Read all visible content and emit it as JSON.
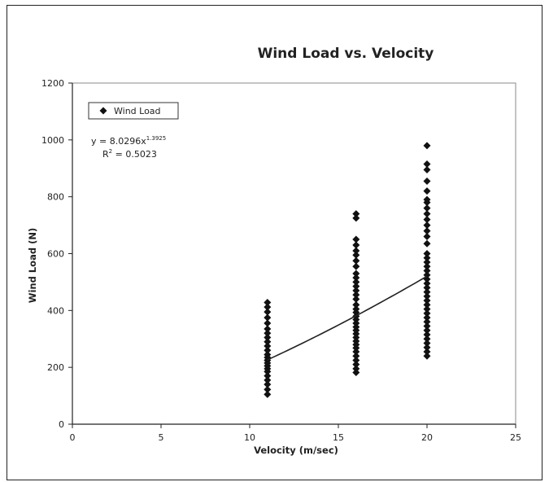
{
  "chart_data": {
    "type": "scatter",
    "title": "Wind Load vs. Velocity",
    "xlabel": "Velocity (m/sec)",
    "ylabel": "Wind Load (N)",
    "xlim": [
      0,
      25
    ],
    "ylim": [
      0,
      1200
    ],
    "xticks": [
      "0",
      "5",
      "10",
      "15",
      "20",
      "25"
    ],
    "yticks": [
      "0",
      "200",
      "400",
      "600",
      "800",
      "1000",
      "1200"
    ],
    "grid": false,
    "legend": {
      "position": "top-left",
      "entries": [
        "Wind Load"
      ]
    },
    "series": [
      {
        "name": "Wind Load",
        "marker": "diamond",
        "color": "#111111",
        "points": [
          [
            11,
            105
          ],
          [
            11,
            122
          ],
          [
            11,
            140
          ],
          [
            11,
            155
          ],
          [
            11,
            170
          ],
          [
            11,
            185
          ],
          [
            11,
            195
          ],
          [
            11,
            205
          ],
          [
            11,
            215
          ],
          [
            11,
            225
          ],
          [
            11,
            235
          ],
          [
            11,
            245
          ],
          [
            11,
            260
          ],
          [
            11,
            275
          ],
          [
            11,
            290
          ],
          [
            11,
            305
          ],
          [
            11,
            320
          ],
          [
            11,
            335
          ],
          [
            11,
            355
          ],
          [
            11,
            375
          ],
          [
            11,
            395
          ],
          [
            11,
            412
          ],
          [
            11,
            428
          ],
          [
            16,
            182
          ],
          [
            16,
            195
          ],
          [
            16,
            210
          ],
          [
            16,
            225
          ],
          [
            16,
            240
          ],
          [
            16,
            255
          ],
          [
            16,
            268
          ],
          [
            16,
            280
          ],
          [
            16,
            292
          ],
          [
            16,
            305
          ],
          [
            16,
            318
          ],
          [
            16,
            330
          ],
          [
            16,
            342
          ],
          [
            16,
            355
          ],
          [
            16,
            368
          ],
          [
            16,
            380
          ],
          [
            16,
            393
          ],
          [
            16,
            405
          ],
          [
            16,
            420
          ],
          [
            16,
            440
          ],
          [
            16,
            455
          ],
          [
            16,
            470
          ],
          [
            16,
            485
          ],
          [
            16,
            500
          ],
          [
            16,
            515
          ],
          [
            16,
            530
          ],
          [
            16,
            555
          ],
          [
            16,
            575
          ],
          [
            16,
            595
          ],
          [
            16,
            610
          ],
          [
            16,
            630
          ],
          [
            16,
            650
          ],
          [
            16,
            725
          ],
          [
            16,
            740
          ],
          [
            20,
            240
          ],
          [
            20,
            255
          ],
          [
            20,
            270
          ],
          [
            20,
            285
          ],
          [
            20,
            300
          ],
          [
            20,
            315
          ],
          [
            20,
            330
          ],
          [
            20,
            345
          ],
          [
            20,
            360
          ],
          [
            20,
            375
          ],
          [
            20,
            390
          ],
          [
            20,
            405
          ],
          [
            20,
            420
          ],
          [
            20,
            435
          ],
          [
            20,
            450
          ],
          [
            20,
            465
          ],
          [
            20,
            480
          ],
          [
            20,
            495
          ],
          [
            20,
            510
          ],
          [
            20,
            525
          ],
          [
            20,
            540
          ],
          [
            20,
            555
          ],
          [
            20,
            570
          ],
          [
            20,
            585
          ],
          [
            20,
            600
          ],
          [
            20,
            635
          ],
          [
            20,
            660
          ],
          [
            20,
            680
          ],
          [
            20,
            700
          ],
          [
            20,
            720
          ],
          [
            20,
            740
          ],
          [
            20,
            760
          ],
          [
            20,
            780
          ],
          [
            20,
            790
          ],
          [
            20,
            820
          ],
          [
            20,
            855
          ],
          [
            20,
            895
          ],
          [
            20,
            915
          ],
          [
            20,
            980
          ]
        ]
      }
    ],
    "trendline": {
      "type": "power",
      "coefficient": 8.0296,
      "exponent": 1.3925,
      "x_range": [
        11,
        20
      ],
      "equation_prefix": "y = 8.0296x",
      "equation_exponent": "1.3925",
      "r2_prefix": "R",
      "r2_exponent": "2",
      "r2_suffix": " = 0.5023"
    }
  }
}
